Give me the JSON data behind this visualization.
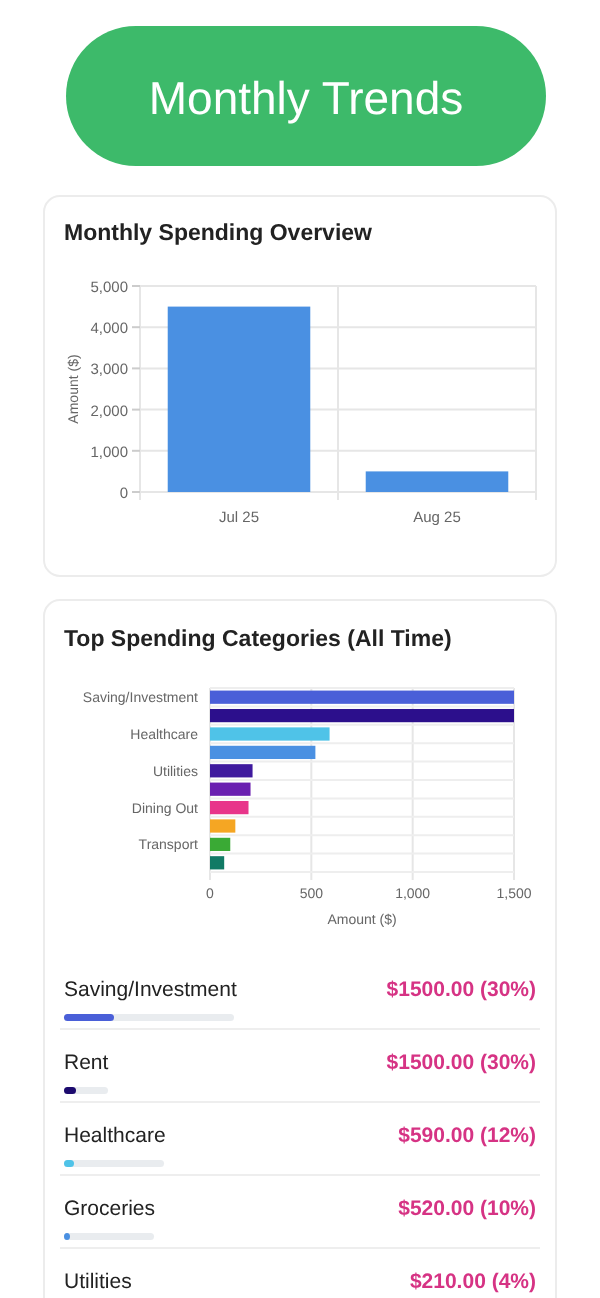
{
  "chart_data": [
    {
      "type": "other",
      "title": "Monthly Trends"
    },
    {
      "type": "bar",
      "title": "Monthly Spending Overview",
      "ylabel": "Amount ($)",
      "categories": [
        "Jul 25",
        "Aug 25"
      ],
      "values": [
        4500,
        500
      ],
      "color": "#4a90e2",
      "ylim": [
        0,
        5000
      ],
      "yticks": [
        0,
        {
          "value": 1000,
          "label": "1,000"
        },
        {
          "value": 2000,
          "label": "2,000"
        },
        {
          "value": 3000,
          "label": "3,000"
        },
        {
          "value": 4000,
          "label": "4,000"
        },
        {
          "value": 5000,
          "label": "5,000"
        }
      ],
      "grid": true
    },
    {
      "type": "bar",
      "orientation": "horizontal",
      "title": "Top Spending Categories (All Time)",
      "xlabel": "Amount ($)",
      "categories": [
        "Saving/Investment",
        null,
        "Healthcare",
        null,
        "Utilities",
        null,
        "Dining Out",
        null,
        "Transport",
        null
      ],
      "values": [
        1500,
        1500,
        590,
        520,
        210,
        200,
        190,
        125,
        100,
        70
      ],
      "colors": [
        "#4a5fd8",
        "#2c0f8c",
        "#4fc3e8",
        "#4a90e2",
        "#3f1a9e",
        "#6a1fb0",
        "#e8358a",
        "#f5a623",
        "#3aaa35",
        "#117a65"
      ],
      "xlim": [
        0,
        1500
      ],
      "xticks": [
        0,
        500,
        {
          "value": 1000,
          "label": "1,000"
        },
        {
          "value": 1500,
          "label": "1,500"
        }
      ],
      "grid": true
    },
    {
      "type": "other",
      "annotations": [
        "Saving/Investment",
        "$1500.00 (30%)",
        "Rent",
        "$1500.00 (30%)",
        "Healthcare",
        "$590.00 (12%)",
        "Groceries",
        "$520.00 (10%)",
        "Utilities",
        "$210.00 (4%)"
      ]
    }
  ]
}
